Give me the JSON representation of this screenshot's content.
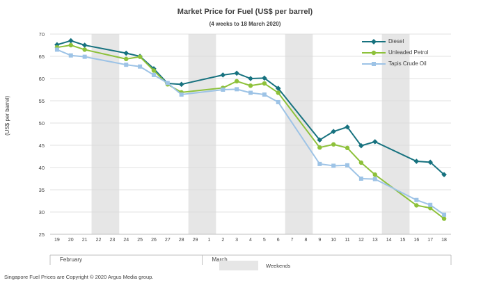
{
  "chart_data": {
    "type": "line",
    "title": "Market Price for Fuel  (US$  per barrel)",
    "subtitle": "(4 weeks to 18 March 2020)",
    "ylabel": "(US$ per barrel)",
    "xlabel": "",
    "ylim": [
      25,
      70
    ],
    "yticks": [
      25,
      30,
      35,
      40,
      45,
      50,
      55,
      60,
      65,
      70
    ],
    "categories": [
      "19",
      "20",
      "21",
      "22",
      "23",
      "24",
      "25",
      "26",
      "27",
      "28",
      "29",
      "1",
      "2",
      "3",
      "4",
      "5",
      "6",
      "7",
      "8",
      "9",
      "10",
      "11",
      "12",
      "13",
      "14",
      "15",
      "16",
      "17",
      "18"
    ],
    "month_labels": [
      {
        "label": "February",
        "start_index": 0
      },
      {
        "label": "March",
        "start_index": 11
      }
    ],
    "shaded_ranges": [
      [
        3,
        4
      ],
      [
        10,
        11
      ],
      [
        17,
        18
      ],
      [
        24,
        25
      ]
    ],
    "shaded_label": "Weekends",
    "grid": true,
    "legend_position": "top-right",
    "series": [
      {
        "name": "Diesel",
        "color": "#17727f",
        "marker": "diamond",
        "values": [
          67.6,
          68.5,
          67.5,
          null,
          null,
          65.7,
          65.0,
          62.2,
          58.9,
          58.7,
          null,
          null,
          60.8,
          61.2,
          60.0,
          60.1,
          57.8,
          null,
          null,
          46.2,
          48.1,
          49.1,
          44.9,
          45.8,
          null,
          null,
          41.4,
          41.2,
          38.4
        ]
      },
      {
        "name": "Unleaded Petrol",
        "color": "#8dc13a",
        "marker": "circle",
        "values": [
          67.0,
          67.5,
          66.5,
          null,
          null,
          64.4,
          64.9,
          61.8,
          58.7,
          56.9,
          null,
          null,
          57.9,
          59.4,
          58.4,
          58.9,
          56.8,
          null,
          null,
          44.5,
          45.2,
          44.4,
          41.1,
          38.4,
          null,
          null,
          31.5,
          30.9,
          28.5
        ]
      },
      {
        "name": "Tapis Crude Oil",
        "color": "#9dc3e6",
        "marker": "square",
        "values": [
          66.5,
          65.2,
          64.9,
          null,
          null,
          63.1,
          62.7,
          60.8,
          59.0,
          56.4,
          null,
          null,
          57.5,
          57.6,
          56.8,
          56.4,
          54.7,
          null,
          null,
          40.8,
          40.4,
          40.5,
          37.5,
          37.4,
          null,
          null,
          32.7,
          31.6,
          29.4
        ]
      }
    ]
  },
  "footer": "Singapore  Fuel Prices are Copyright © 2020  Argus Media group."
}
